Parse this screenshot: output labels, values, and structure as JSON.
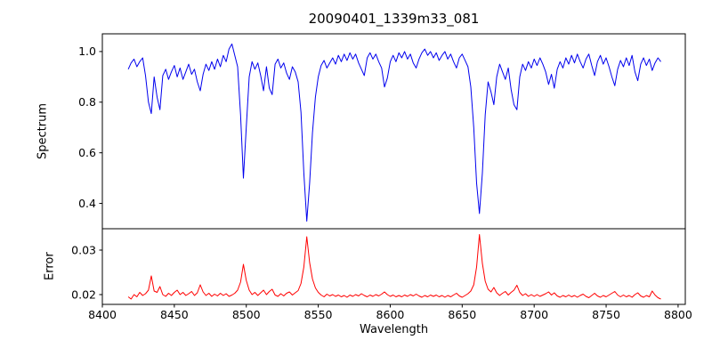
{
  "figure": {
    "title": "20090401_1339m33_081",
    "xlabel": "Wavelength",
    "ylabel_top": "Spectrum",
    "ylabel_bottom": "Error"
  },
  "chart_data": [
    {
      "type": "line",
      "name": "spectrum",
      "ylabel": "Spectrum",
      "color": "#0000ee",
      "xlim": [
        8400,
        8805
      ],
      "ylim": [
        0.3,
        1.07
      ],
      "yticks": [
        0.4,
        0.6,
        0.8,
        1.0
      ],
      "ytick_labels": [
        "0.4",
        "0.6",
        "0.8",
        "1.0"
      ],
      "x_start": 8418,
      "x_step": 2,
      "values": [
        0.93,
        0.955,
        0.97,
        0.94,
        0.96,
        0.975,
        0.905,
        0.8,
        0.755,
        0.9,
        0.82,
        0.77,
        0.905,
        0.93,
        0.89,
        0.92,
        0.945,
        0.9,
        0.935,
        0.89,
        0.92,
        0.95,
        0.91,
        0.93,
        0.88,
        0.845,
        0.91,
        0.95,
        0.925,
        0.96,
        0.93,
        0.97,
        0.94,
        0.985,
        0.96,
        1.01,
        1.03,
        0.985,
        0.94,
        0.75,
        0.5,
        0.7,
        0.9,
        0.96,
        0.93,
        0.955,
        0.905,
        0.845,
        0.94,
        0.855,
        0.83,
        0.95,
        0.97,
        0.935,
        0.955,
        0.915,
        0.89,
        0.94,
        0.92,
        0.88,
        0.76,
        0.52,
        0.33,
        0.48,
        0.68,
        0.82,
        0.9,
        0.945,
        0.965,
        0.935,
        0.955,
        0.975,
        0.95,
        0.985,
        0.96,
        0.99,
        0.965,
        0.995,
        0.97,
        0.99,
        0.955,
        0.93,
        0.905,
        0.975,
        0.995,
        0.97,
        0.99,
        0.96,
        0.935,
        0.86,
        0.895,
        0.96,
        0.985,
        0.96,
        0.995,
        0.975,
        1.0,
        0.97,
        0.99,
        0.955,
        0.935,
        0.97,
        0.995,
        1.01,
        0.985,
        1.0,
        0.975,
        0.995,
        0.965,
        0.985,
        1.0,
        0.97,
        0.99,
        0.96,
        0.935,
        0.975,
        0.99,
        0.965,
        0.94,
        0.86,
        0.7,
        0.48,
        0.36,
        0.52,
        0.75,
        0.88,
        0.84,
        0.79,
        0.9,
        0.95,
        0.92,
        0.89,
        0.935,
        0.85,
        0.79,
        0.77,
        0.9,
        0.95,
        0.925,
        0.96,
        0.935,
        0.97,
        0.945,
        0.975,
        0.95,
        0.92,
        0.87,
        0.91,
        0.855,
        0.93,
        0.96,
        0.935,
        0.975,
        0.95,
        0.985,
        0.955,
        0.99,
        0.96,
        0.935,
        0.97,
        0.99,
        0.945,
        0.905,
        0.96,
        0.985,
        0.95,
        0.975,
        0.94,
        0.9,
        0.865,
        0.93,
        0.965,
        0.94,
        0.975,
        0.945,
        0.985,
        0.92,
        0.885,
        0.95,
        0.975,
        0.945,
        0.97,
        0.925,
        0.955,
        0.975,
        0.96
      ]
    },
    {
      "type": "line",
      "name": "error",
      "ylabel": "Error",
      "xlabel": "Wavelength",
      "color": "#ff0000",
      "xlim": [
        8400,
        8805
      ],
      "ylim": [
        0.0178,
        0.0348
      ],
      "yticks": [
        0.02,
        0.03
      ],
      "ytick_labels": [
        "0.02",
        "0.03"
      ],
      "xticks": [
        8400,
        8450,
        8500,
        8550,
        8600,
        8650,
        8700,
        8750,
        8800
      ],
      "xtick_labels": [
        "8400",
        "8450",
        "8500",
        "8550",
        "8600",
        "8650",
        "8700",
        "8750",
        "8800"
      ],
      "x_start": 8418,
      "x_step": 2,
      "values": [
        0.0195,
        0.019,
        0.02,
        0.0195,
        0.0205,
        0.0198,
        0.0202,
        0.021,
        0.0242,
        0.0208,
        0.0205,
        0.0218,
        0.02,
        0.0196,
        0.0203,
        0.0198,
        0.0205,
        0.021,
        0.02,
        0.0205,
        0.0198,
        0.0202,
        0.0207,
        0.0198,
        0.0204,
        0.0222,
        0.0206,
        0.0198,
        0.0203,
        0.0196,
        0.0201,
        0.0197,
        0.0203,
        0.0198,
        0.0202,
        0.0196,
        0.0199,
        0.0203,
        0.021,
        0.0228,
        0.0268,
        0.0232,
        0.021,
        0.02,
        0.0205,
        0.0198,
        0.0204,
        0.021,
        0.02,
        0.0207,
        0.0212,
        0.0199,
        0.0196,
        0.0202,
        0.0197,
        0.0203,
        0.0206,
        0.0199,
        0.0204,
        0.0209,
        0.0225,
        0.0262,
        0.033,
        0.0272,
        0.0235,
        0.0215,
        0.0205,
        0.0199,
        0.0195,
        0.0201,
        0.0197,
        0.02,
        0.0196,
        0.0199,
        0.0195,
        0.0198,
        0.0194,
        0.0199,
        0.0196,
        0.02,
        0.0197,
        0.0202,
        0.0198,
        0.0195,
        0.0199,
        0.0196,
        0.02,
        0.0197,
        0.0201,
        0.0206,
        0.02,
        0.0196,
        0.0199,
        0.0195,
        0.0198,
        0.0195,
        0.0199,
        0.0196,
        0.02,
        0.0197,
        0.0201,
        0.0197,
        0.0194,
        0.0198,
        0.0195,
        0.0199,
        0.0196,
        0.0199,
        0.0195,
        0.0198,
        0.0194,
        0.0198,
        0.0195,
        0.0199,
        0.0203,
        0.0197,
        0.0194,
        0.0198,
        0.0202,
        0.0208,
        0.0222,
        0.0262,
        0.0335,
        0.027,
        0.023,
        0.0212,
        0.0206,
        0.0216,
        0.0204,
        0.0198,
        0.0203,
        0.0207,
        0.0199,
        0.0205,
        0.021,
        0.0221,
        0.0205,
        0.0198,
        0.0202,
        0.0196,
        0.02,
        0.0196,
        0.02,
        0.0196,
        0.0199,
        0.0202,
        0.0206,
        0.0199,
        0.0204,
        0.0197,
        0.0194,
        0.0198,
        0.0195,
        0.0199,
        0.0195,
        0.0198,
        0.0194,
        0.0198,
        0.0201,
        0.0196,
        0.0193,
        0.0198,
        0.0203,
        0.0197,
        0.0194,
        0.0198,
        0.0195,
        0.0199,
        0.0203,
        0.0207,
        0.0199,
        0.0195,
        0.0199,
        0.0195,
        0.0198,
        0.0194,
        0.02,
        0.0204,
        0.0197,
        0.0194,
        0.0198,
        0.0195,
        0.0208,
        0.0199,
        0.0193,
        0.019
      ]
    }
  ]
}
